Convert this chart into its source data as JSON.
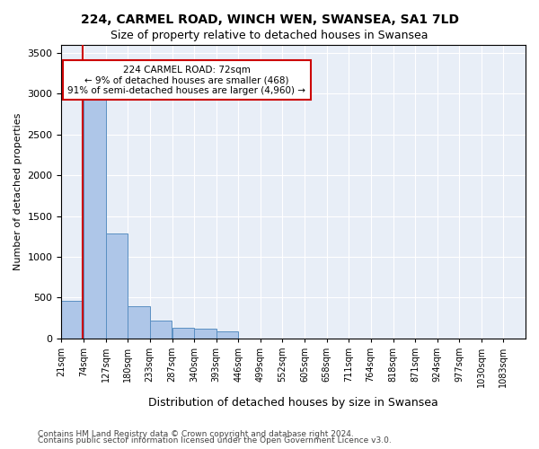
{
  "title1": "224, CARMEL ROAD, WINCH WEN, SWANSEA, SA1 7LD",
  "title2": "Size of property relative to detached houses in Swansea",
  "xlabel": "Distribution of detached houses by size in Swansea",
  "ylabel": "Number of detached properties",
  "footer1": "Contains HM Land Registry data © Crown copyright and database right 2024.",
  "footer2": "Contains public sector information licensed under the Open Government Licence v3.0.",
  "annotation_line1": "224 CARMEL ROAD: 72sqm",
  "annotation_line2": "← 9% of detached houses are smaller (468)",
  "annotation_line3": "91% of semi-detached houses are larger (4,960) →",
  "bar_color": "#aec6e8",
  "bar_edge_color": "#5a8fc2",
  "highlight_color": "#cc0000",
  "background_color": "#e8eef7",
  "bin_labels": [
    "21sqm",
    "74sqm",
    "127sqm",
    "180sqm",
    "233sqm",
    "287sqm",
    "340sqm",
    "393sqm",
    "446sqm",
    "499sqm",
    "552sqm",
    "605sqm",
    "658sqm",
    "711sqm",
    "764sqm",
    "818sqm",
    "871sqm",
    "924sqm",
    "977sqm",
    "1030sqm",
    "1083sqm"
  ],
  "bin_edges": [
    21,
    74,
    127,
    180,
    233,
    287,
    340,
    393,
    446,
    499,
    552,
    605,
    658,
    711,
    764,
    818,
    871,
    924,
    977,
    1030,
    1083
  ],
  "bar_heights": [
    460,
    3300,
    1280,
    390,
    220,
    130,
    120,
    80,
    0,
    0,
    0,
    0,
    0,
    0,
    0,
    0,
    0,
    0,
    0,
    0
  ],
  "property_size": 72,
  "ylim": [
    0,
    3600
  ],
  "yticks": [
    0,
    500,
    1000,
    1500,
    2000,
    2500,
    3000,
    3500
  ]
}
